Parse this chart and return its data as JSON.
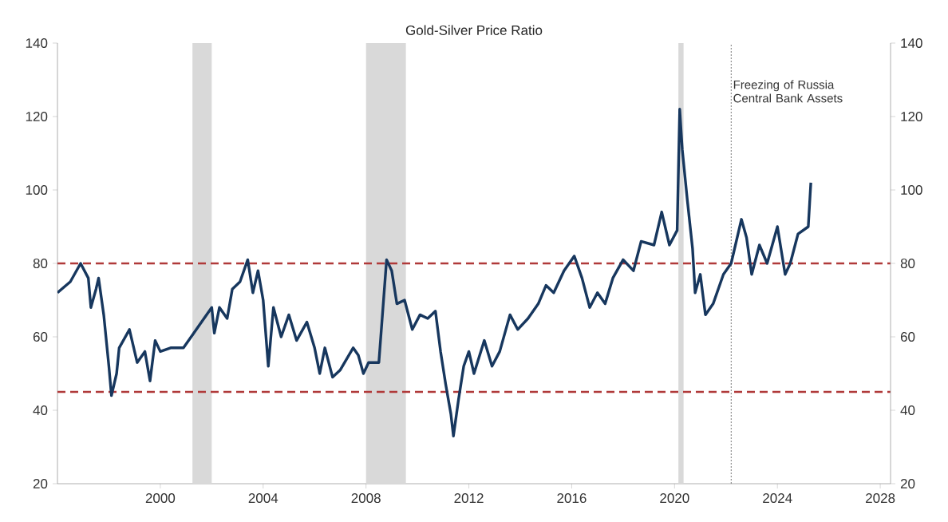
{
  "chart_data": {
    "type": "line",
    "title": "Gold-Silver Price Ratio",
    "xlim": [
      1996,
      2028.4
    ],
    "xticks": [
      2000,
      2004,
      2008,
      2012,
      2016,
      2020,
      2024,
      2028
    ],
    "ylim": [
      20,
      140
    ],
    "yticks": [
      20,
      40,
      60,
      80,
      100,
      120,
      140
    ],
    "y2lim": [
      20,
      140
    ],
    "y2ticks": [
      20,
      40,
      60,
      80,
      100,
      120,
      140
    ],
    "bands": [
      {
        "axis": "x",
        "from": 2001.25,
        "to": 2002.0,
        "color": "#d9d9d9"
      },
      {
        "axis": "x",
        "from": 2008.0,
        "to": 2009.55,
        "color": "#d9d9d9"
      },
      {
        "axis": "x",
        "from": 2020.15,
        "to": 2020.35,
        "color": "#d9d9d9"
      }
    ],
    "ref_lines": [
      {
        "axis": "y",
        "value": 80,
        "color": "#b03a3a",
        "line_style": "dashed"
      },
      {
        "axis": "y",
        "value": 45,
        "color": "#b03a3a",
        "line_style": "dashed"
      },
      {
        "axis": "x",
        "value": 2022.2,
        "color": "#808080",
        "line_style": "dotted",
        "label": "Freezing of Russia Central Bank Assets"
      }
    ],
    "series": [
      {
        "color": "#17375e",
        "line_style": "solid",
        "x": [
          1996.0,
          1996.5,
          1996.9,
          1997.2,
          1997.3,
          1997.5,
          1997.6,
          1997.8,
          1998.0,
          1998.1,
          1998.3,
          1998.4,
          1998.8,
          1999.1,
          1999.4,
          1999.6,
          1999.8,
          2000.0,
          2000.4,
          2000.9,
          2001.2,
          2001.7,
          2002.0,
          2002.1,
          2002.3,
          2002.6,
          2002.8,
          2003.1,
          2003.4,
          2003.6,
          2003.8,
          2004.0,
          2004.2,
          2004.4,
          2004.7,
          2005.0,
          2005.3,
          2005.7,
          2006.0,
          2006.2,
          2006.4,
          2006.7,
          2007.0,
          2007.5,
          2007.7,
          2007.9,
          2008.1,
          2008.5,
          2008.8,
          2009.0,
          2009.2,
          2009.5,
          2009.8,
          2010.1,
          2010.4,
          2010.7,
          2010.9,
          2011.1,
          2011.3,
          2011.4,
          2011.6,
          2011.8,
          2012.0,
          2012.2,
          2012.6,
          2012.9,
          2013.2,
          2013.6,
          2013.9,
          2014.3,
          2014.7,
          2015.0,
          2015.3,
          2015.7,
          2016.1,
          2016.4,
          2016.7,
          2017.0,
          2017.3,
          2017.6,
          2018.0,
          2018.4,
          2018.7,
          2019.2,
          2019.5,
          2019.8,
          2020.1,
          2020.2,
          2020.3,
          2020.5,
          2020.7,
          2020.8,
          2021.0,
          2021.2,
          2021.5,
          2021.9,
          2022.2,
          2022.6,
          2022.8,
          2023.0,
          2023.3,
          2023.6,
          2024.0,
          2024.3,
          2024.5,
          2024.8,
          2025.0,
          2025.2,
          2025.3
        ],
        "values": [
          72,
          75,
          80,
          76,
          68,
          73,
          76,
          66,
          52,
          44,
          50,
          57,
          62,
          53,
          56,
          48,
          59,
          56,
          57,
          57,
          60,
          65,
          68,
          61,
          68,
          65,
          73,
          75,
          81,
          72,
          78,
          70,
          52,
          68,
          60,
          66,
          59,
          64,
          57,
          50,
          57,
          49,
          51,
          57,
          55,
          50,
          53,
          53,
          81,
          78,
          69,
          70,
          62,
          66,
          65,
          67,
          56,
          47,
          39,
          33,
          43,
          52,
          56,
          50,
          59,
          52,
          56,
          66,
          62,
          65,
          69,
          74,
          72,
          78,
          82,
          76,
          68,
          72,
          69,
          76,
          81,
          78,
          86,
          85,
          94,
          85,
          89,
          122,
          111,
          97,
          84,
          72,
          77,
          66,
          69,
          77,
          80,
          92,
          87,
          77,
          85,
          80,
          90,
          77,
          80,
          88,
          89,
          90,
          102
        ]
      }
    ]
  }
}
